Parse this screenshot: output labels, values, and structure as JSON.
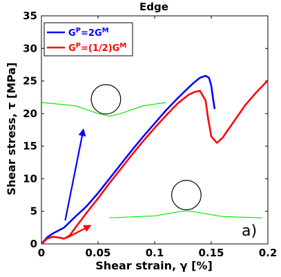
{
  "chart_data": {
    "type": "line",
    "title": "Edge",
    "xlabel": "Shear strain, γ [%]",
    "ylabel": "Shear stress, τ [MPa]",
    "xlim": [
      0,
      0.2
    ],
    "ylim": [
      0,
      35
    ],
    "xticks": [
      0,
      0.05,
      0.1,
      0.15,
      0.2
    ],
    "xtick_labels": [
      "0",
      "0.05",
      "0.1",
      "0.15",
      "0.2"
    ],
    "yticks": [
      0,
      5,
      10,
      15,
      20,
      25,
      30,
      35
    ],
    "ytick_labels": [
      "0",
      "5",
      "10",
      "15",
      "20",
      "25",
      "30",
      "35"
    ],
    "grid": false,
    "legend_position": "top-left",
    "panel_label": "a)",
    "series": [
      {
        "name": "G^P=2G^M",
        "color": "#0000ff",
        "x": [
          0,
          0.005,
          0.01,
          0.02,
          0.03,
          0.04,
          0.05,
          0.06,
          0.07,
          0.08,
          0.09,
          0.1,
          0.11,
          0.12,
          0.13,
          0.135,
          0.14,
          0.145,
          0.148,
          0.15,
          0.152,
          0.153
        ],
        "y": [
          0,
          1.0,
          1.6,
          2.5,
          4.2,
          5.8,
          7.8,
          10.0,
          12.2,
          14.4,
          16.5,
          18.5,
          20.5,
          22.3,
          24.0,
          24.8,
          25.5,
          25.8,
          25.5,
          24.3,
          21.8,
          20.7
        ]
      },
      {
        "name": "G^P=(1/2)G^M",
        "color": "#ff0000",
        "x": [
          0,
          0.005,
          0.01,
          0.015,
          0.02,
          0.025,
          0.03,
          0.04,
          0.05,
          0.06,
          0.07,
          0.08,
          0.09,
          0.1,
          0.11,
          0.12,
          0.13,
          0.135,
          0.14,
          0.145,
          0.147,
          0.15,
          0.155,
          0.16,
          0.17,
          0.18,
          0.19,
          0.2
        ],
        "y": [
          0,
          0.8,
          1.1,
          1.0,
          0.8,
          1.3,
          2.5,
          4.8,
          7.0,
          9.3,
          11.5,
          13.7,
          15.8,
          17.8,
          19.7,
          21.5,
          22.9,
          23.3,
          23.5,
          22.0,
          19.5,
          16.5,
          15.5,
          16.3,
          18.8,
          21.3,
          23.3,
          25.1
        ]
      }
    ],
    "legend_entries": [
      {
        "base": "G",
        "sup1": "P",
        "rest": "=2G",
        "sup2": "M",
        "color": "#0000ff"
      },
      {
        "base": "G",
        "sup1": "P",
        "rest": "=(1/2)G",
        "sup2": "M",
        "color": "#ff0000"
      }
    ],
    "insets": [
      {
        "kind": "green-curve",
        "color": "#00ee00",
        "x": [
          0.0,
          0.03,
          0.05,
          0.06,
          0.07,
          0.09,
          0.11
        ],
        "y": [
          21.7,
          21.2,
          20.0,
          19.6,
          20.0,
          21.2,
          21.7
        ]
      },
      {
        "kind": "circle",
        "cx": 0.057,
        "cy": 22.2,
        "r_x": 0.013
      },
      {
        "kind": "green-curve",
        "color": "#00ee00",
        "x": [
          0.06,
          0.1,
          0.12,
          0.128,
          0.136,
          0.16,
          0.195
        ],
        "y": [
          4.0,
          4.3,
          4.9,
          5.1,
          4.9,
          4.2,
          4.0
        ]
      },
      {
        "kind": "circle",
        "cx": 0.128,
        "cy": 7.5,
        "r_x": 0.013
      },
      {
        "kind": "arrow",
        "color": "#0000ff",
        "x1": 0.021,
        "y1": 3.6,
        "x2": 0.037,
        "y2": 17.5
      },
      {
        "kind": "arrow",
        "color": "#ff0000",
        "x1": 0.022,
        "y1": 0.9,
        "x2": 0.043,
        "y2": 2.8
      }
    ]
  }
}
